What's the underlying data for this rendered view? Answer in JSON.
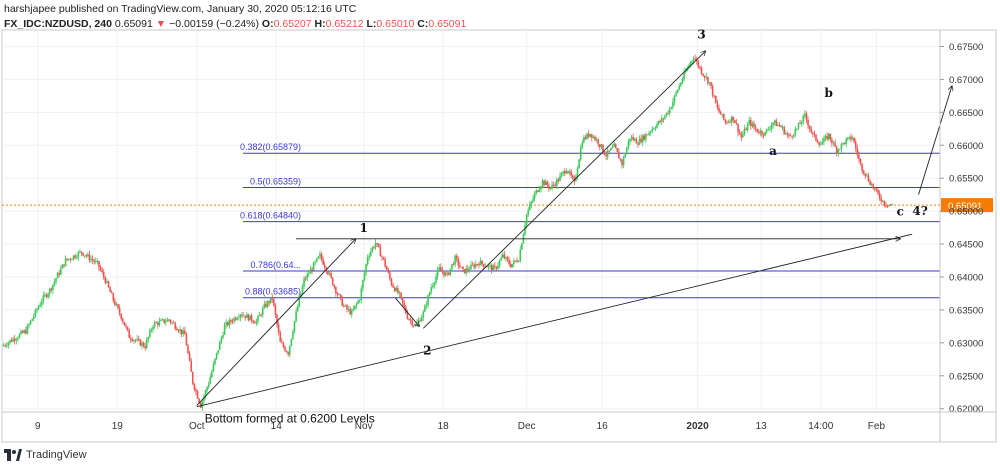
{
  "header": {
    "publisher_line": "harshjapee published on TradingView.com, January 30, 2020 05:12:16 UTC",
    "symbol": "FX_IDC:NZDUSD, 240",
    "last": "0.65091",
    "change": "−0.00159 (−0.24%)",
    "o_label": "O:",
    "o_val": "0.65207",
    "h_label": "H:",
    "h_val": "0.65212",
    "l_label": "L:",
    "l_val": "0.65010",
    "c_label": "C:",
    "c_val": "0.65091"
  },
  "footer": {
    "brand": "TradingView"
  },
  "colors": {
    "up": "#26a69a",
    "up_bright": "#3cc95a",
    "down": "#ef5350",
    "fib": "#3a3ad6",
    "price_line": "#f57c00",
    "annotation": "#222222",
    "badge": "#f57c00"
  },
  "chart_data": {
    "type": "candlestick",
    "ylim": [
      0.6195,
      0.6775
    ],
    "y_ticks": [
      "0.67500",
      "0.67000",
      "0.66500",
      "0.66000",
      "0.65500",
      "0.65000",
      "0.64500",
      "0.64000",
      "0.63500",
      "0.63000",
      "0.62500",
      "0.62000"
    ],
    "y_tick_values": [
      0.675,
      0.67,
      0.665,
      0.66,
      0.655,
      0.65,
      0.645,
      0.64,
      0.635,
      0.63,
      0.625,
      0.62
    ],
    "x_ticks": [
      "9",
      "19",
      "Oct",
      "14",
      "Nov",
      "18",
      "Dec",
      "16",
      "2020",
      "13",
      "14:00",
      "Feb"
    ],
    "x_tick_positions": [
      0.5,
      10.5,
      20.5,
      30.5,
      41.5,
      51.5,
      62,
      71.5,
      83.5,
      91.5,
      99,
      106
    ],
    "x_range": [
      -4,
      114
    ],
    "current_price": 0.65091,
    "current_price_label": "0.65091",
    "price_waypoints": [
      [
        -4,
        0.6295
      ],
      [
        -1,
        0.6318
      ],
      [
        1,
        0.6365
      ],
      [
        2,
        0.638
      ],
      [
        4,
        0.6425
      ],
      [
        6,
        0.6438
      ],
      [
        8,
        0.642
      ],
      [
        9,
        0.6395
      ],
      [
        10,
        0.6365
      ],
      [
        11,
        0.634
      ],
      [
        12,
        0.631
      ],
      [
        14,
        0.6295
      ],
      [
        15,
        0.6328
      ],
      [
        17,
        0.6335
      ],
      [
        19,
        0.6312
      ],
      [
        20,
        0.624
      ],
      [
        21,
        0.6205
      ],
      [
        22,
        0.624
      ],
      [
        24,
        0.6325
      ],
      [
        26,
        0.6345
      ],
      [
        28,
        0.6332
      ],
      [
        29,
        0.6355
      ],
      [
        30,
        0.6368
      ],
      [
        31,
        0.63
      ],
      [
        32,
        0.6285
      ],
      [
        33,
        0.6345
      ],
      [
        34,
        0.6395
      ],
      [
        36,
        0.6432
      ],
      [
        37,
        0.6408
      ],
      [
        38,
        0.638
      ],
      [
        39,
        0.6355
      ],
      [
        40,
        0.6345
      ],
      [
        41,
        0.6368
      ],
      [
        42,
        0.6432
      ],
      [
        43,
        0.6452
      ],
      [
        44,
        0.6425
      ],
      [
        45,
        0.639
      ],
      [
        46,
        0.6372
      ],
      [
        47,
        0.634
      ],
      [
        48,
        0.6325
      ],
      [
        49,
        0.6345
      ],
      [
        50,
        0.6385
      ],
      [
        51,
        0.6412
      ],
      [
        52,
        0.6402
      ],
      [
        53,
        0.6428
      ],
      [
        54,
        0.6408
      ],
      [
        56,
        0.6422
      ],
      [
        58,
        0.6412
      ],
      [
        59,
        0.6432
      ],
      [
        60,
        0.6418
      ],
      [
        61,
        0.6428
      ],
      [
        62,
        0.6495
      ],
      [
        63,
        0.6525
      ],
      [
        64,
        0.6545
      ],
      [
        65,
        0.6535
      ],
      [
        66,
        0.6548
      ],
      [
        67,
        0.6565
      ],
      [
        68,
        0.6542
      ],
      [
        69,
        0.6608
      ],
      [
        70,
        0.6618
      ],
      [
        71,
        0.6605
      ],
      [
        72,
        0.6585
      ],
      [
        73,
        0.6598
      ],
      [
        74,
        0.6572
      ],
      [
        75,
        0.6612
      ],
      [
        76,
        0.6605
      ],
      [
        77,
        0.6615
      ],
      [
        78,
        0.6628
      ],
      [
        79,
        0.6638
      ],
      [
        80,
        0.6655
      ],
      [
        81,
        0.6685
      ],
      [
        82,
        0.6712
      ],
      [
        83,
        0.6735
      ],
      [
        84,
        0.6712
      ],
      [
        85,
        0.6695
      ],
      [
        86,
        0.6655
      ],
      [
        87,
        0.6635
      ],
      [
        88,
        0.6642
      ],
      [
        89,
        0.6612
      ],
      [
        90,
        0.6635
      ],
      [
        91,
        0.6622
      ],
      [
        92,
        0.6618
      ],
      [
        93,
        0.6635
      ],
      [
        94,
        0.6628
      ],
      [
        95,
        0.6612
      ],
      [
        96,
        0.6625
      ],
      [
        97,
        0.6645
      ],
      [
        98,
        0.6615
      ],
      [
        99,
        0.6602
      ],
      [
        100,
        0.6615
      ],
      [
        101,
        0.6592
      ],
      [
        102,
        0.6605
      ],
      [
        103,
        0.6612
      ],
      [
        104,
        0.657
      ],
      [
        105,
        0.6548
      ],
      [
        106,
        0.6528
      ],
      [
        107,
        0.6512
      ],
      [
        108,
        0.6509
      ]
    ],
    "fib_levels": [
      {
        "label": "0.382(0.65879)",
        "value": 0.65879
      },
      {
        "label": "0.5(0.65359)",
        "value": 0.65359
      },
      {
        "label": "0.618(0.64840)",
        "value": 0.6484
      },
      {
        "label": "0.786(0.64...",
        "value": 0.6409
      },
      {
        "label": "0.88(0.63685)",
        "value": 0.63685
      }
    ],
    "wave_labels": [
      {
        "text": "1",
        "x": 41.5,
        "y": 0.6468
      },
      {
        "text": "2",
        "x": 49.5,
        "y": 0.6282
      },
      {
        "text": "3",
        "x": 84,
        "y": 0.6762
      },
      {
        "text": "a",
        "x": 93,
        "y": 0.6585
      },
      {
        "text": "b",
        "x": 100,
        "y": 0.6673
      },
      {
        "text": "c",
        "x": 109,
        "y": 0.6493
      },
      {
        "text": "4?",
        "x": 111.5,
        "y": 0.6494
      }
    ],
    "annotations": [
      {
        "text": "Bottom formed at 0.6200 Levels",
        "x": 21.5,
        "y": 0.6197
      }
    ],
    "lines": [
      {
        "from": [
          20.5,
          0.6205
        ],
        "to": [
          40.5,
          0.6458
        ],
        "arrow": true
      },
      {
        "from": [
          20.5,
          0.6203
        ],
        "to": [
          110.5,
          0.6465
        ],
        "arrow": false
      },
      {
        "from": [
          33,
          0.6458
        ],
        "to": [
          109,
          0.6458
        ],
        "arrow": true
      },
      {
        "from": [
          49,
          0.6322
        ],
        "to": [
          84.5,
          0.6743
        ],
        "arrow": true
      },
      {
        "from": [
          45.5,
          0.6368
        ],
        "to": [
          48.5,
          0.6325
        ],
        "arrow": true
      },
      {
        "from": [
          111.3,
          0.6525
        ],
        "to": [
          115.5,
          0.669
        ],
        "arrow": true
      }
    ]
  }
}
